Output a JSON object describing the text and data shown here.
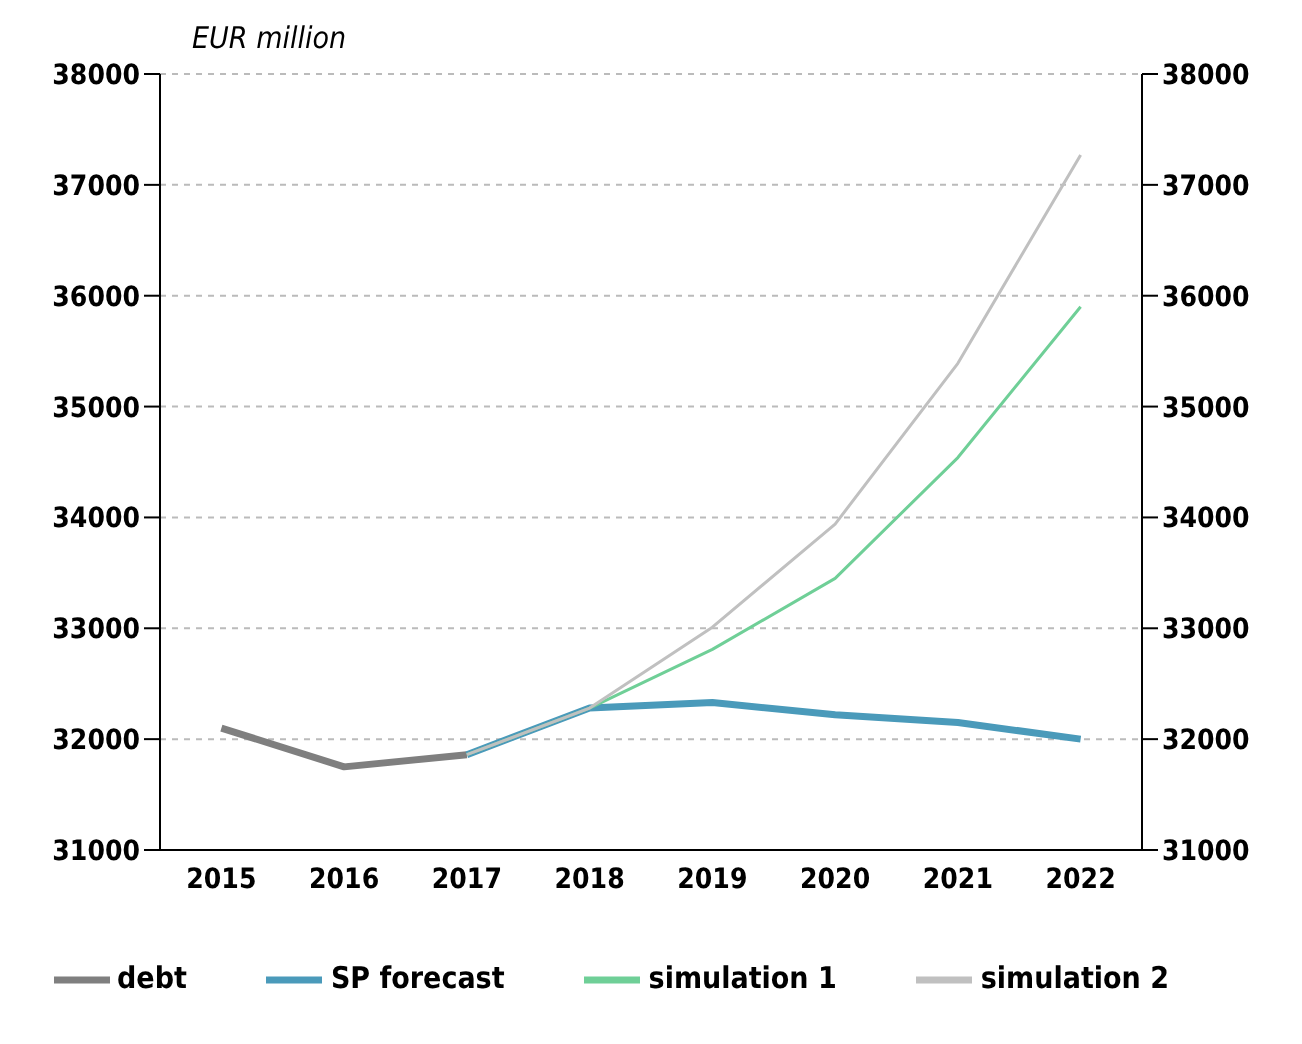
{
  "chart_data": {
    "type": "line",
    "ylabel": "EUR million",
    "categories": [
      "2015",
      "2016",
      "2017",
      "2018",
      "2019",
      "2020",
      "2021",
      "2022"
    ],
    "series": [
      {
        "name": "debt",
        "color": "#7f7f7f",
        "values": [
          32100,
          31750,
          31860,
          null,
          null,
          null,
          null,
          null
        ]
      },
      {
        "name": "SP forecast",
        "color": "#4a9aba",
        "values": [
          null,
          null,
          31860,
          32280,
          32330,
          32220,
          32150,
          32000
        ]
      },
      {
        "name": "simulation 1",
        "color": "#6fcf97",
        "values": [
          null,
          null,
          31860,
          32280,
          32810,
          33450,
          34540,
          35900
        ]
      },
      {
        "name": "simulation 2",
        "color": "#c0c0c0",
        "values": [
          null,
          null,
          31860,
          32280,
          33010,
          33940,
          35390,
          37270
        ]
      }
    ],
    "ylim": [
      31000,
      38000
    ],
    "yticks": [
      31000,
      32000,
      33000,
      34000,
      35000,
      36000,
      37000,
      38000
    ],
    "y2lim": [
      31000,
      38000
    ],
    "y2ticks": [
      31000,
      32000,
      33000,
      34000,
      35000,
      36000,
      37000,
      38000
    ],
    "grid": true,
    "legend": "bottom",
    "marker": "none",
    "line_style": "solid"
  }
}
